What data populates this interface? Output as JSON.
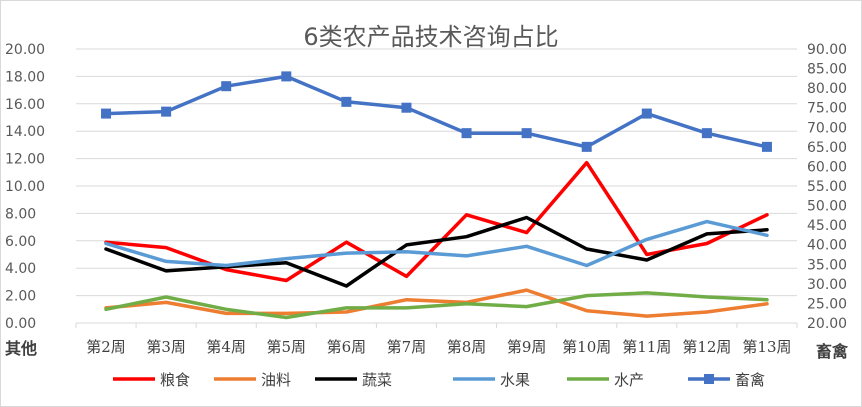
{
  "chart_data": {
    "type": "line",
    "title": "6类农产品技术咨询占比",
    "categories": [
      "第2周",
      "第3周",
      "第4周",
      "第5周",
      "第6周",
      "第7周",
      "第8周",
      "第9周",
      "第10周",
      "第11周",
      "第12周",
      "第13周"
    ],
    "left_axis": {
      "title": "其他",
      "ylim": [
        0,
        20
      ],
      "ticks": [
        "0.00",
        "2.00",
        "4.00",
        "6.00",
        "8.00",
        "10.00",
        "12.00",
        "14.00",
        "16.00",
        "18.00",
        "20.00"
      ]
    },
    "right_axis": {
      "title": "畜禽",
      "ylim": [
        20,
        90
      ],
      "ticks": [
        "20.00",
        "25.00",
        "30.00",
        "35.00",
        "40.00",
        "45.00",
        "50.00",
        "55.00",
        "60.00",
        "65.00",
        "70.00",
        "75.00",
        "80.00",
        "85.00",
        "90.00"
      ]
    },
    "grid": true,
    "legend": "bottom",
    "series": [
      {
        "name": "粮食",
        "color": "#ff0000",
        "axis": "left",
        "values": [
          5.9,
          5.5,
          3.9,
          3.1,
          5.9,
          3.4,
          7.9,
          6.6,
          11.7,
          5.0,
          5.8,
          7.9
        ]
      },
      {
        "name": "油料",
        "color": "#ed7d31",
        "axis": "left",
        "values": [
          1.1,
          1.5,
          0.7,
          0.7,
          0.8,
          1.7,
          1.5,
          2.4,
          0.9,
          0.5,
          0.8,
          1.4
        ]
      },
      {
        "name": "蔬菜",
        "color": "#000000",
        "axis": "left",
        "values": [
          5.4,
          3.8,
          4.1,
          4.4,
          2.7,
          5.7,
          6.3,
          7.7,
          5.4,
          4.6,
          6.5,
          6.8
        ]
      },
      {
        "name": "水果",
        "color": "#5b9bd5",
        "axis": "left",
        "values": [
          5.8,
          4.5,
          4.2,
          4.7,
          5.1,
          5.2,
          4.9,
          5.6,
          4.2,
          6.1,
          7.4,
          6.4
        ]
      },
      {
        "name": "水产",
        "color": "#70ad47",
        "axis": "left",
        "values": [
          1.0,
          1.9,
          1.0,
          0.4,
          1.1,
          1.1,
          1.4,
          1.2,
          2.0,
          2.2,
          1.9,
          1.7
        ]
      },
      {
        "name": "畜禽",
        "color": "#4472c4",
        "axis": "right",
        "marker": "square",
        "values": [
          73.5,
          74.0,
          80.5,
          83.0,
          76.5,
          75.0,
          68.5,
          68.5,
          65.0,
          73.5,
          68.5,
          65.0
        ]
      }
    ]
  }
}
